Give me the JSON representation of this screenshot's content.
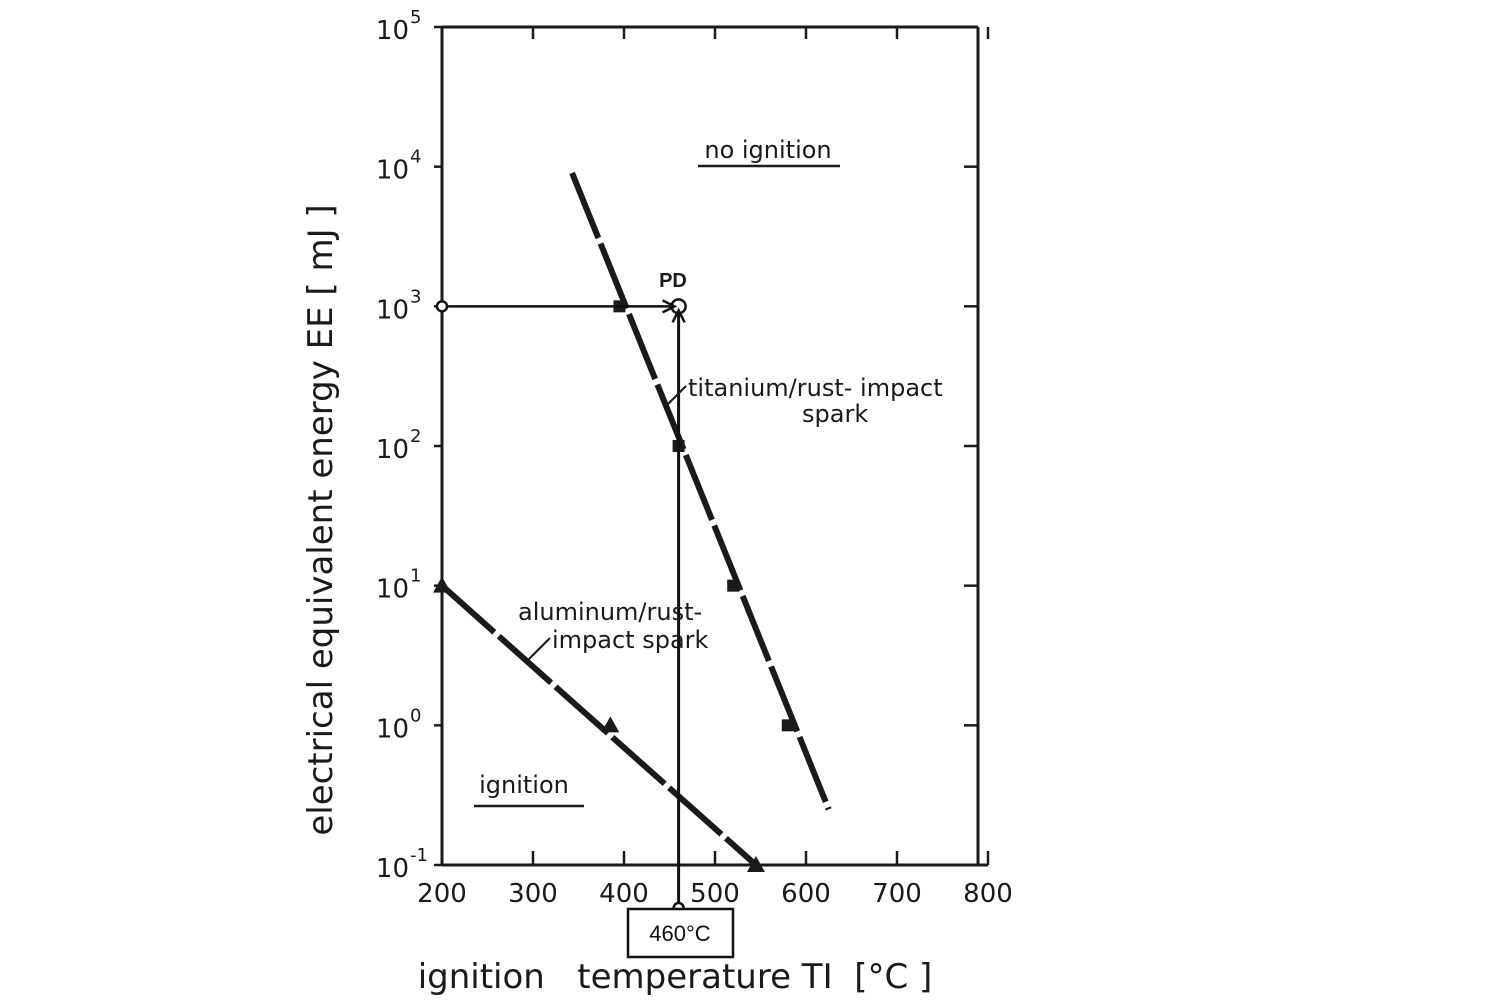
{
  "chart_data": {
    "type": "line",
    "title": "",
    "xlabel": "ignition   temperature TI  [°C ]",
    "ylabel": "electrical equivalent energy EE [ mJ ]",
    "xlim": [
      200,
      800
    ],
    "ylim": [
      0.1,
      100000
    ],
    "y_scale": "log",
    "x_ticks": [
      200,
      300,
      400,
      500,
      600,
      700,
      800
    ],
    "y_ticks": [
      {
        "value": 0.1,
        "base": "10",
        "exp": "-1"
      },
      {
        "value": 1,
        "base": "10",
        "exp": "0"
      },
      {
        "value": 10,
        "base": "10",
        "exp": "1"
      },
      {
        "value": 100,
        "base": "10",
        "exp": "2"
      },
      {
        "value": 1000,
        "base": "10",
        "exp": "3"
      },
      {
        "value": 10000,
        "base": "10",
        "exp": "4"
      },
      {
        "value": 100000,
        "base": "10",
        "exp": "5"
      }
    ],
    "grid": false,
    "series": [
      {
        "name": "titanium/rust-impact spark",
        "marker": "square",
        "line": [
          [
            343,
            9000
          ],
          [
            625,
            0.25
          ]
        ],
        "points": [
          [
            395,
            1000
          ],
          [
            460,
            100
          ],
          [
            520,
            10
          ],
          [
            580,
            1
          ]
        ]
      },
      {
        "name": "aluminum/rust-impact spark",
        "marker": "triangle",
        "line": [
          [
            200,
            10
          ],
          [
            545,
            0.1
          ]
        ],
        "points": [
          [
            200,
            10
          ],
          [
            385,
            1
          ],
          [
            545,
            0.1
          ]
        ]
      }
    ],
    "guide_lines": [
      {
        "from": [
          200,
          1000
        ],
        "to": [
          460,
          1000
        ]
      },
      {
        "from": [
          460,
          0.03
        ],
        "to": [
          460,
          1000
        ]
      }
    ],
    "annotations": {
      "no_ignition": "no ignition",
      "ignition": "ignition",
      "titanium_line1": "titanium/rust- impact",
      "titanium_line2": "spark",
      "aluminum_line1": "aluminum/rust-",
      "aluminum_line2": "impact spark",
      "pd_label": "PD",
      "temp_box": "460°C"
    }
  }
}
